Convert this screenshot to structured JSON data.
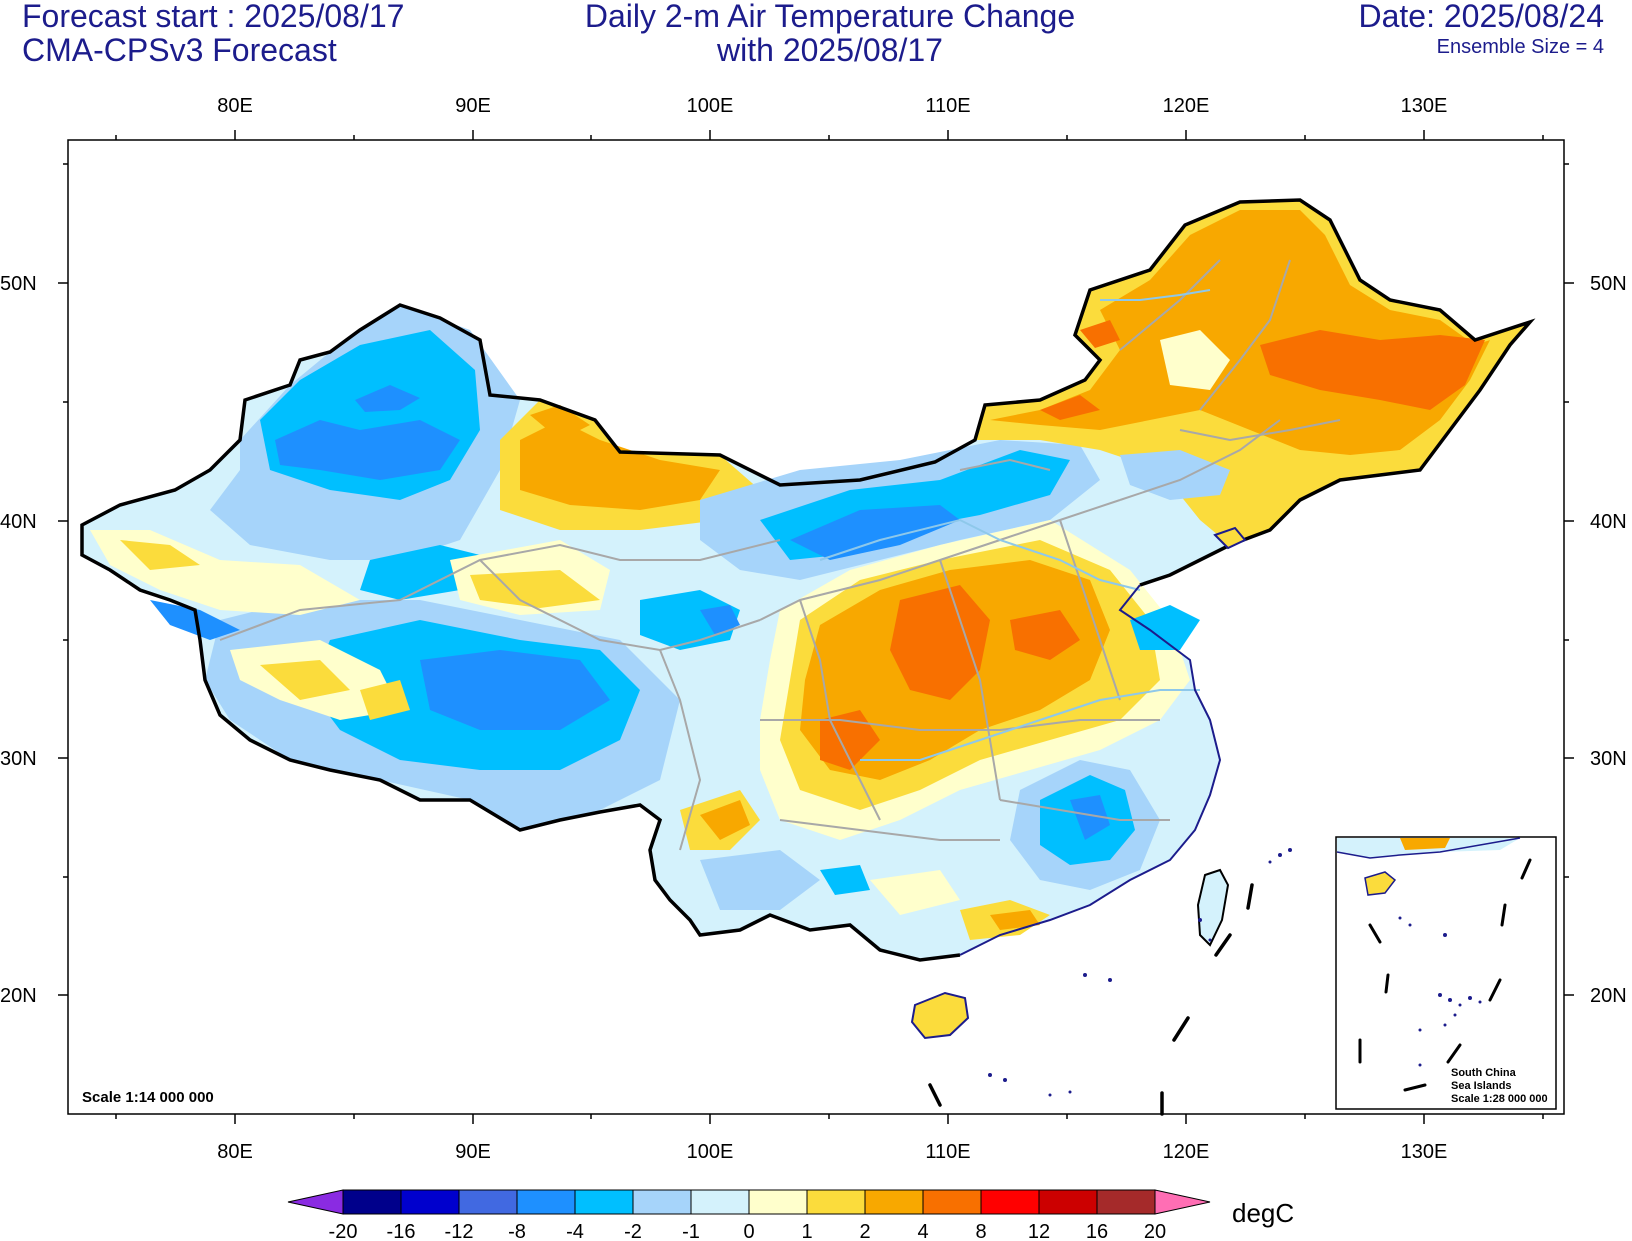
{
  "header": {
    "forecast_start": "Forecast start : 2025/08/17",
    "model": "CMA-CPSv3 Forecast",
    "title_line1": "Daily 2-m Air Temperature Change",
    "title_line2": "with 2025/08/17",
    "date": "Date: 2025/08/24",
    "ensemble": "Ensemble Size = 4"
  },
  "map": {
    "lon_ticks": [
      "80E",
      "90E",
      "100E",
      "110E",
      "120E",
      "130E"
    ],
    "lat_ticks": [
      "50N",
      "40N",
      "30N",
      "20N"
    ],
    "scale": "Scale 1:14 000 000",
    "inset": {
      "line1": "South China",
      "line2": "Sea Islands",
      "line3": "Scale 1:28 000 000"
    }
  },
  "colorbar": {
    "unit": "degC",
    "labels": [
      "-20",
      "-16",
      "-12",
      "-8",
      "-4",
      "-2",
      "-1",
      "0",
      "1",
      "2",
      "4",
      "8",
      "12",
      "16",
      "20"
    ],
    "colors": [
      "#8a2be2",
      "#00008b",
      "#0000cd",
      "#4169e1",
      "#1e90ff",
      "#00bfff",
      "#a6d4fa",
      "#d4f2fc",
      "#ffffcc",
      "#fbdc3c",
      "#f8a800",
      "#f87000",
      "#ff0000",
      "#cc0000",
      "#a52a2a",
      "#ff6eb4"
    ]
  }
}
